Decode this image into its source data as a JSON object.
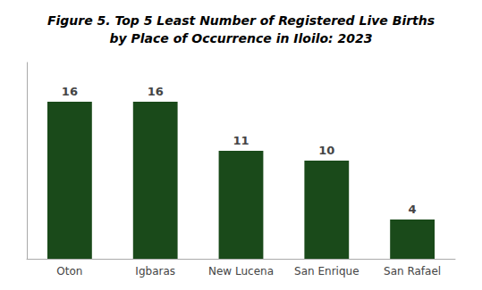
{
  "chart_data": {
    "type": "bar",
    "title": "Figure 5. Top 5 Least Number of Registered Live Births\nby Place of Occurrence in Iloilo: 2023",
    "categories": [
      "Oton",
      "Igbaras",
      "New Lucena",
      "San Enrique",
      "San Rafael"
    ],
    "values": [
      16,
      16,
      11,
      10,
      4
    ],
    "color": "#1a4a1a",
    "ylim": [
      0,
      20
    ],
    "data_labels": true,
    "tick_labels": "x",
    "grid": false
  }
}
